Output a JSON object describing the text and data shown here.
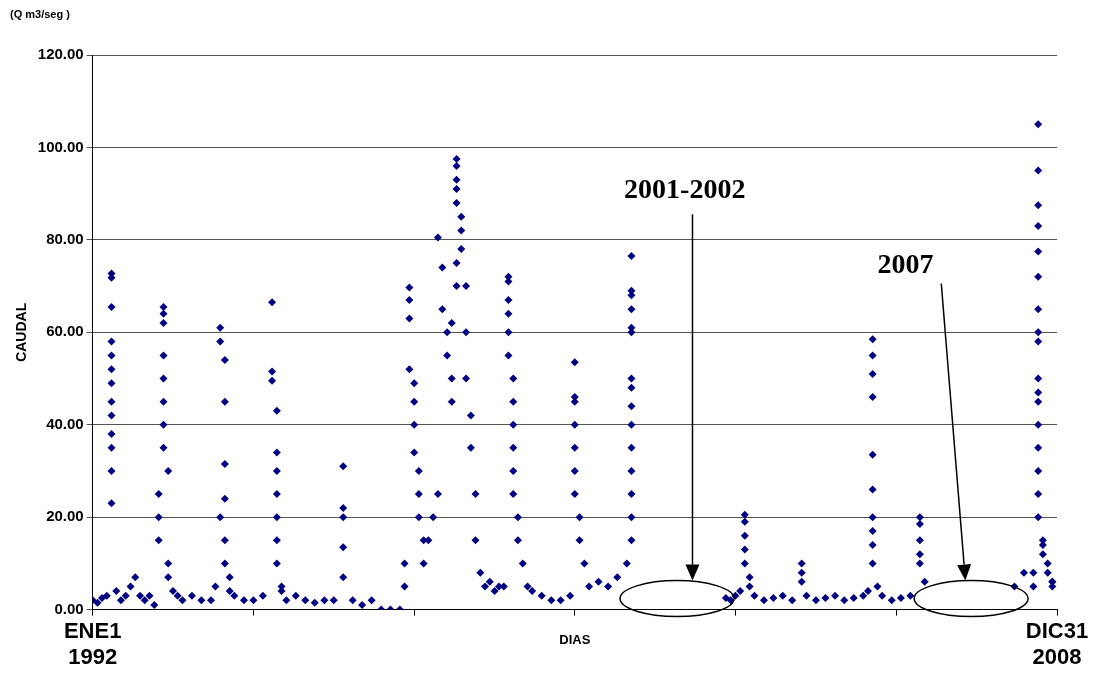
{
  "chart_data": {
    "type": "scatter",
    "subtitle": "(Q m3/seg )",
    "xlabel": "DIAS",
    "ylabel": "CAUDAL",
    "xlim": [
      "1992-01-01",
      "2008-12-31"
    ],
    "xticks": [
      {
        "value": "1992-01-01",
        "label": "ENE1\n1992"
      },
      {
        "value": "1994-11-01",
        "label": null
      },
      {
        "value": "1997-09-01",
        "label": null
      },
      {
        "value": "2000-07-02",
        "label": null
      },
      {
        "value": "2003-05-03",
        "label": null
      },
      {
        "value": "2006-03-03",
        "label": null
      },
      {
        "value": "2008-12-31",
        "label": "DIC31\n2008"
      }
    ],
    "ylim": [
      0,
      120
    ],
    "yticks": [
      {
        "value": 0,
        "label": "0.00"
      },
      {
        "value": 20,
        "label": "20.00"
      },
      {
        "value": 40,
        "label": "40.00"
      },
      {
        "value": 60,
        "label": "60.00"
      },
      {
        "value": 80,
        "label": "80.00"
      },
      {
        "value": 100,
        "label": "100.00"
      },
      {
        "value": 120,
        "label": "120.00"
      }
    ],
    "grid": "y",
    "marker": "diamond",
    "legend": false,
    "annotations": [
      "2001-2002",
      "2007"
    ],
    "series": [
      {
        "color": "#000080",
        "x": [
          "1992-01",
          "1992-02",
          "1992-03",
          "1992-04",
          "1992-05",
          "1992-05",
          "1992-05",
          "1992-05",
          "1992-05",
          "1992-05",
          "1992-05",
          "1992-05",
          "1992-05",
          "1992-05",
          "1992-05",
          "1992-05",
          "1992-05",
          "1992-06",
          "1992-07",
          "1992-08",
          "1992-09",
          "1992-10",
          "1992-11",
          "1992-12",
          "1993-01",
          "1993-02",
          "1993-03",
          "1993-03",
          "1993-03",
          "1993-04",
          "1993-04",
          "1993-04",
          "1993-04",
          "1993-04",
          "1993-04",
          "1993-04",
          "1993-04",
          "1993-05",
          "1993-05",
          "1993-05",
          "1993-06",
          "1993-07",
          "1993-08",
          "1993-10",
          "1993-12",
          "1994-02",
          "1994-03",
          "1994-04",
          "1994-04",
          "1994-04",
          "1994-05",
          "1994-05",
          "1994-05",
          "1994-05",
          "1994-05",
          "1994-05",
          "1994-06",
          "1994-06",
          "1994-07",
          "1994-09",
          "1994-11",
          "1995-01",
          "1995-03",
          "1995-03",
          "1995-03",
          "1995-04",
          "1995-04",
          "1995-04",
          "1995-04",
          "1995-04",
          "1995-04",
          "1995-04",
          "1995-05",
          "1995-05",
          "1995-06",
          "1995-08",
          "1995-10",
          "1995-12",
          "1996-02",
          "1996-04",
          "1996-06",
          "1996-06",
          "1996-06",
          "1996-06",
          "1996-06",
          "1996-08",
          "1996-10",
          "1996-12",
          "1997-02",
          "1997-04",
          "1997-06",
          "1997-07",
          "1997-07",
          "1997-08",
          "1997-08",
          "1997-08",
          "1997-08",
          "1997-09",
          "1997-09",
          "1997-09",
          "1997-09",
          "1997-10",
          "1997-10",
          "1997-10",
          "1997-11",
          "1997-11",
          "1997-12",
          "1998-01",
          "1998-02",
          "1998-02",
          "1998-03",
          "1998-03",
          "1998-04",
          "1998-04",
          "1998-05",
          "1998-05",
          "1998-05",
          "1998-06",
          "1998-06",
          "1998-06",
          "1998-06",
          "1998-06",
          "1998-06",
          "1998-06",
          "1998-07",
          "1998-07",
          "1998-07",
          "1998-08",
          "1998-08",
          "1998-08",
          "1998-09",
          "1998-09",
          "1998-10",
          "1998-10",
          "1998-11",
          "1998-12",
          "1999-01",
          "1999-02",
          "1999-03",
          "1999-04",
          "1999-05",
          "1999-05",
          "1999-05",
          "1999-05",
          "1999-05",
          "1999-05",
          "1999-06",
          "1999-06",
          "1999-06",
          "1999-06",
          "1999-06",
          "1999-06",
          "1999-07",
          "1999-07",
          "1999-08",
          "1999-09",
          "1999-10",
          "1999-12",
          "2000-02",
          "2000-04",
          "2000-06",
          "2000-07",
          "2000-07",
          "2000-07",
          "2000-07",
          "2000-07",
          "2000-07",
          "2000-07",
          "2000-08",
          "2000-08",
          "2000-09",
          "2000-10",
          "2000-12",
          "2001-02",
          "2001-04",
          "2001-06",
          "2001-07",
          "2001-07",
          "2001-07",
          "2001-07",
          "2001-07",
          "2001-07",
          "2001-07",
          "2001-07",
          "2001-07",
          "2001-07",
          "2001-07",
          "2001-07",
          "2001-07",
          "2001-07",
          "2001-07",
          "2003-03",
          "2003-04",
          "2003-05",
          "2003-06",
          "2003-07",
          "2003-07",
          "2003-07",
          "2003-07",
          "2003-07",
          "2003-08",
          "2003-08",
          "2003-09",
          "2003-11",
          "2004-01",
          "2004-03",
          "2004-05",
          "2004-07",
          "2004-07",
          "2004-07",
          "2004-08",
          "2004-10",
          "2004-12",
          "2005-02",
          "2005-04",
          "2005-06",
          "2005-08",
          "2005-09",
          "2005-10",
          "2005-10",
          "2005-10",
          "2005-10",
          "2005-10",
          "2005-10",
          "2005-10",
          "2005-10",
          "2005-10",
          "2005-10",
          "2005-11",
          "2005-12",
          "2006-02",
          "2006-04",
          "2006-06",
          "2006-08",
          "2006-08",
          "2006-08",
          "2006-08",
          "2006-08",
          "2006-09",
          "2008-04",
          "2008-06",
          "2008-08",
          "2008-08",
          "2008-09",
          "2008-09",
          "2008-09",
          "2008-09",
          "2008-09",
          "2008-09",
          "2008-09",
          "2008-09",
          "2008-09",
          "2008-09",
          "2008-09",
          "2008-09",
          "2008-09",
          "2008-09",
          "2008-09",
          "2008-09",
          "2008-09",
          "2008-10",
          "2008-10",
          "2008-10",
          "2008-11",
          "2008-11",
          "2008-12",
          "2008-12",
          "2008-12"
        ],
        "values": [
          2,
          1.5,
          2.5,
          3,
          72.7,
          71.8,
          65.5,
          58,
          55,
          52,
          49,
          45,
          42,
          38,
          35,
          30,
          23,
          4,
          2,
          3,
          5,
          7,
          3,
          2,
          3,
          1,
          15,
          20,
          25,
          65.5,
          64,
          62,
          55,
          50,
          45,
          40,
          35,
          30,
          10,
          7,
          4,
          3,
          2,
          3,
          2,
          2,
          5,
          61,
          58,
          20,
          54,
          45,
          31.5,
          24,
          15,
          10,
          7,
          4,
          3,
          2,
          2,
          3,
          66.5,
          51.5,
          49.5,
          43,
          34,
          30,
          25,
          20,
          15,
          10,
          5,
          4,
          2,
          3,
          2,
          1.5,
          2,
          2,
          31,
          22,
          20,
          13.5,
          7,
          2,
          1,
          2,
          0,
          0,
          0,
          5,
          10,
          69.7,
          67,
          63,
          52,
          49,
          45,
          40,
          34,
          30,
          25,
          20,
          15,
          10,
          15,
          20,
          25,
          80.5,
          74,
          65,
          60,
          55,
          50,
          45,
          62,
          70,
          75,
          97.5,
          96,
          93,
          91,
          88,
          85,
          82,
          78,
          70,
          60,
          50,
          42,
          35,
          25,
          15,
          8,
          5,
          6,
          4,
          5,
          5,
          72,
          71,
          67,
          64,
          60,
          55,
          50,
          45,
          40,
          35,
          30,
          25,
          20,
          15,
          10,
          5,
          4,
          3,
          2,
          2,
          3,
          53.5,
          46,
          45,
          40,
          35,
          30,
          25,
          20,
          15,
          10,
          5,
          6,
          5,
          7,
          10,
          76.5,
          69,
          68,
          65,
          61,
          60,
          50,
          48,
          44,
          40,
          35,
          30,
          25,
          20,
          15,
          2.5,
          2,
          3,
          4,
          20.5,
          19,
          16,
          13,
          10,
          7,
          5,
          3,
          2,
          2.5,
          3,
          2,
          10,
          8,
          6,
          3,
          2,
          2.5,
          3,
          2,
          2.5,
          3,
          4,
          58.5,
          55,
          51,
          46,
          33.5,
          26,
          20,
          17,
          14,
          10,
          5,
          3,
          2,
          2.5,
          3,
          20,
          18.5,
          15,
          12,
          10,
          6,
          5,
          8,
          5,
          8,
          105,
          95,
          87.5,
          83,
          77.5,
          72,
          65,
          60,
          58,
          50,
          47,
          45,
          40,
          35,
          30,
          25,
          20,
          15,
          12,
          14,
          10,
          8,
          6,
          5,
          6
        ]
      }
    ]
  }
}
